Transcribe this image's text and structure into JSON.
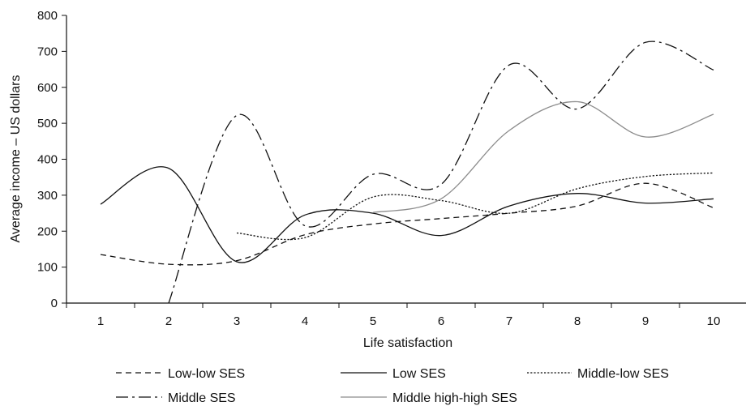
{
  "chart_data": {
    "type": "line",
    "xlabel": "Life satisfaction",
    "ylabel": "Average income – US dollars",
    "xlim": [
      0.5,
      10.5
    ],
    "ylim": [
      0,
      800
    ],
    "x_ticks": [
      1,
      2,
      3,
      4,
      5,
      6,
      7,
      8,
      9,
      10
    ],
    "y_ticks": [
      0,
      100,
      200,
      300,
      400,
      500,
      600,
      700,
      800
    ],
    "grid": false,
    "legend_position": "bottom",
    "series": [
      {
        "name": "Low-low SES",
        "dash": "dashed",
        "color": "#111111",
        "x": [
          1,
          2,
          3,
          4,
          5,
          6,
          7,
          8,
          9,
          10
        ],
        "y": [
          135,
          108,
          118,
          190,
          220,
          235,
          250,
          270,
          333,
          265
        ]
      },
      {
        "name": "Low SES",
        "dash": "solid",
        "color": "#111111",
        "x": [
          1,
          2,
          3,
          4,
          5,
          6,
          7,
          8,
          9,
          10
        ],
        "y": [
          275,
          375,
          115,
          245,
          250,
          188,
          270,
          305,
          278,
          290
        ]
      },
      {
        "name": "Middle-low SES",
        "dash": "dotted",
        "color": "#111111",
        "x": [
          3,
          4,
          5,
          6,
          7,
          8,
          9,
          10
        ],
        "y": [
          195,
          182,
          295,
          285,
          250,
          318,
          352,
          362
        ]
      },
      {
        "name": "Middle SES",
        "dash": "dashdot",
        "color": "#111111",
        "x": [
          2,
          3,
          4,
          5,
          6,
          7,
          8,
          9,
          10
        ],
        "y": [
          0,
          522,
          215,
          358,
          330,
          662,
          540,
          725,
          648
        ]
      },
      {
        "name": "Middle high-high SES",
        "dash": "solid",
        "color": "#8c8c8c",
        "x": [
          5,
          6,
          7,
          8,
          9,
          10
        ],
        "y": [
          252,
          290,
          480,
          560,
          462,
          525
        ]
      }
    ]
  }
}
